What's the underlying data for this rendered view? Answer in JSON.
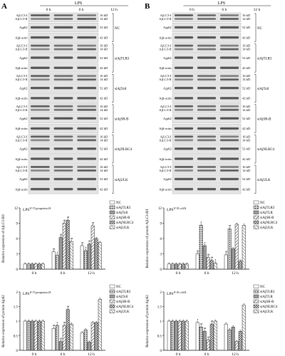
{
  "panels": [
    {
      "letter": "A",
      "lps": "LPS",
      "lps_sup": "$^{T.pyrogenicus}$",
      "times": [
        "0 h",
        "6 h",
        "12 h"
      ],
      "blot_rows": [
        {
          "labels": [
            "AjLC3-I",
            "AjLC3-II"
          ],
          "kd": [
            "16 kD",
            "14 kD"
          ]
        },
        {
          "labels": [
            "Ajp62"
          ],
          "kd": [
            "52 kD"
          ]
        },
        {
          "labels": [
            "Ajβ-actin"
          ],
          "kd": [
            "42 kD"
          ]
        },
        {
          "labels": [
            "AjLC3-I",
            "AjLC3-II"
          ],
          "kd": [
            "16 kD",
            "14 kD"
          ]
        },
        {
          "labels": [
            "Ajp62"
          ],
          "kd": [
            "52 kD"
          ]
        },
        {
          "labels": [
            "Ajβ-actin"
          ],
          "kd": [
            "42 kD"
          ]
        },
        {
          "labels": [
            "AjLC3-I",
            "AjLC3-II"
          ],
          "kd": [
            "16 kD",
            "14 kD"
          ]
        },
        {
          "labels": [
            "Ajp62"
          ],
          "kd": [
            "52 kD"
          ]
        },
        {
          "labels": [
            "Ajβ-actin"
          ],
          "kd": [
            "42 kD"
          ]
        },
        {
          "labels": [
            "AjLC3-I",
            "AjLC3-II"
          ],
          "kd": [
            "16 kD",
            "14 kD"
          ]
        },
        {
          "labels": [
            "Ajp62"
          ],
          "kd": [
            "52 kD"
          ]
        },
        {
          "labels": [
            "Ajβ-actin"
          ],
          "kd": [
            "42 kD"
          ]
        },
        {
          "labels": [
            "AjLC3-I",
            "AjLC3-II"
          ],
          "kd": [
            "16 kD",
            "14 kD"
          ]
        },
        {
          "labels": [
            "Ajp62"
          ],
          "kd": [
            "52 kD"
          ]
        },
        {
          "labels": [
            "Ajβ-actin"
          ],
          "kd": [
            "42 kD"
          ]
        },
        {
          "labels": [
            "AjLC3-I",
            "AjLC3-II"
          ],
          "kd": [
            "16 kD",
            "14 kD"
          ]
        },
        {
          "labels": [
            "Ajp62"
          ],
          "kd": [
            "52 kD"
          ]
        },
        {
          "labels": [
            "Ajβ-actin"
          ],
          "kd": [
            "42 kD"
          ]
        }
      ],
      "groups": [
        "NC",
        "siAjTLR3",
        "siAjToll",
        "siAjSR-B",
        "siAjNLRC4",
        "siAjULK"
      ]
    },
    {
      "letter": "B",
      "lps": "LPS",
      "lps_sup": "$^{E.coli}$",
      "times": [
        "0 h",
        "6 h",
        "12 h"
      ],
      "blot_rows": [
        {
          "labels": [
            "AjLC3-I",
            "AjLC3-II"
          ],
          "kd": [
            "16 kD",
            "14 kD"
          ]
        },
        {
          "labels": [
            "Ajp62"
          ],
          "kd": [
            "52 kD"
          ]
        },
        {
          "labels": [
            "Ajβ-actin"
          ],
          "kd": [
            "42 kD"
          ]
        },
        {
          "labels": [
            "AjLC3-I",
            "AjLC3-II"
          ],
          "kd": [
            "16 kD",
            "14 kD"
          ]
        },
        {
          "labels": [
            "Ajp62"
          ],
          "kd": [
            "52 kD"
          ]
        },
        {
          "labels": [
            "Ajβ-actin"
          ],
          "kd": [
            "42 kD"
          ]
        },
        {
          "labels": [
            "AjLC3-I",
            "AjLC3-II"
          ],
          "kd": [
            "16 kD",
            "14 kD"
          ]
        },
        {
          "labels": [
            "Ajp62"
          ],
          "kd": [
            "52 kD"
          ]
        },
        {
          "labels": [
            "Ajβ-actin"
          ],
          "kd": [
            "42 kD"
          ]
        },
        {
          "labels": [
            "AjLC3-I",
            "AjLC3-II"
          ],
          "kd": [
            "16 kD",
            "14 kD"
          ]
        },
        {
          "labels": [
            "Ajp62"
          ],
          "kd": [
            "52 kD"
          ]
        },
        {
          "labels": [
            "Ajβ-actin"
          ],
          "kd": [
            "42 kD"
          ]
        },
        {
          "labels": [
            "AjLC3-I",
            "AjLC3-II"
          ],
          "kd": [
            "16 kD",
            "14 kD"
          ]
        },
        {
          "labels": [
            "Ajp62"
          ],
          "kd": [
            "52 kD"
          ]
        },
        {
          "labels": [
            "Ajβ-actin"
          ],
          "kd": [
            "42 kD"
          ]
        },
        {
          "labels": [
            "AjLC3-I",
            "AjLC3-II"
          ],
          "kd": [
            "16 kD",
            "14 kD"
          ]
        },
        {
          "labels": [
            "Ajp62"
          ],
          "kd": [
            "52 kD"
          ]
        },
        {
          "labels": [
            "Ajβ-actin"
          ],
          "kd": [
            "42 kD"
          ]
        }
      ],
      "groups": [
        "NC",
        "siAjTLR3",
        "siAjToll",
        "siAjSR-B",
        "siAjNLRC4",
        "siAjULK"
      ]
    }
  ],
  "chart_data": [
    {
      "type": "bar",
      "panel": "A",
      "ylabel": "Relative expression of AjLC3-II/I",
      "categories": [
        "0 h",
        "6 h",
        "12 h"
      ],
      "ylim": [
        0,
        12
      ],
      "yticks": [
        0,
        3,
        6,
        9,
        12
      ],
      "series": [
        {
          "name": "NC",
          "values": [
            1.0,
            3.4,
            4.6
          ]
        },
        {
          "name": "siAjTLR3",
          "values": [
            1.0,
            2.7,
            3.6
          ]
        },
        {
          "name": "siAjToll",
          "values": [
            1.0,
            6.2,
            4.9
          ]
        },
        {
          "name": "siAjSR-B",
          "values": [
            1.0,
            9.0,
            8.5
          ]
        },
        {
          "name": "siAjNLRC4",
          "values": [
            1.0,
            9.6,
            6.0
          ]
        },
        {
          "name": "siAjULK",
          "values": [
            1.0,
            5.4,
            5.2
          ]
        }
      ],
      "annotations": [
        "aa",
        "a",
        "aa",
        "aa",
        "aa",
        "aa",
        "aa",
        "a",
        "aa",
        "aa"
      ]
    },
    {
      "type": "bar",
      "panel": "B",
      "ylabel": "Relative expression of protein AjLC3-II/I",
      "categories": [
        "0 h",
        "6 h",
        "12 h"
      ],
      "ylim": [
        0,
        12
      ],
      "yticks": [
        0,
        3,
        6,
        9,
        12
      ],
      "series": [
        {
          "name": "NC",
          "values": [
            1.0,
            3.0,
            2.8
          ]
        },
        {
          "name": "siAjTLR3",
          "values": [
            1.0,
            8.6,
            7.9
          ]
        },
        {
          "name": "siAjTLR",
          "values": [
            1.0,
            4.6,
            4.0
          ]
        },
        {
          "name": "siAjSR-B",
          "values": [
            1.0,
            2.3,
            8.8
          ]
        },
        {
          "name": "siAjNLRC4",
          "values": [
            1.0,
            1.7,
            1.6
          ]
        },
        {
          "name": "siAjULK",
          "values": [
            1.0,
            1.2,
            8.6
          ]
        }
      ],
      "annotations": [
        "aa",
        "a",
        "a",
        "aa",
        "aa",
        "a",
        "aa",
        "aa"
      ]
    },
    {
      "type": "bar",
      "panel": "A",
      "ylabel": "Relative expression of protein Ajp62",
      "categories": [
        "0 h",
        "6 h",
        "12 h"
      ],
      "ylim": [
        0,
        2.0
      ],
      "yticks": [
        0,
        0.5,
        1.0,
        1.5,
        2.0
      ],
      "series": [
        {
          "name": "NC",
          "values": [
            1.0,
            0.75,
            0.6
          ]
        },
        {
          "name": "siAjTLR3",
          "values": [
            1.0,
            0.85,
            0.7
          ]
        },
        {
          "name": "siAjToll",
          "values": [
            1.0,
            0.3,
            0.28
          ]
        },
        {
          "name": "siAjSR-B",
          "values": [
            1.0,
            0.85,
            0.95
          ]
        },
        {
          "name": "siAjNLRC4",
          "values": [
            1.0,
            1.4,
            0.95
          ]
        },
        {
          "name": "siAjULK",
          "values": [
            1.0,
            0.9,
            1.75
          ]
        }
      ],
      "annotations": [
        "aa",
        "a",
        "aa",
        "aa",
        "aa"
      ]
    },
    {
      "type": "bar",
      "panel": "B",
      "ylabel": "Relative expression of protein Ajp62",
      "categories": [
        "0 h",
        "6 h",
        "12 h"
      ],
      "ylim": [
        0,
        2.0
      ],
      "yticks": [
        0,
        0.5,
        1.0,
        1.5,
        2.0
      ],
      "series": [
        {
          "name": "NC",
          "values": [
            1.0,
            0.95,
            0.9
          ]
        },
        {
          "name": "siAjTLR3",
          "values": [
            1.0,
            0.8,
            0.7
          ]
        },
        {
          "name": "siAjTLR",
          "values": [
            1.0,
            0.65,
            0.8
          ]
        },
        {
          "name": "siAjSR-B",
          "values": [
            1.0,
            0.35,
            0.3
          ]
        },
        {
          "name": "siAjNLRC4",
          "values": [
            1.0,
            0.9,
            0.65
          ]
        },
        {
          "name": "siAjULK",
          "values": [
            1.0,
            1.0,
            1.55
          ]
        }
      ],
      "annotations": [
        "a",
        "aa",
        "aa",
        "aa",
        "aa"
      ]
    }
  ],
  "colors": {
    "bars": [
      "#ffffff",
      "#bdbdbd",
      "#9a9a9a",
      "#ffffff",
      "#ededed",
      "#ffffff"
    ],
    "patterns": [
      "none",
      "dots",
      "none",
      "diag",
      "cross",
      "hatch"
    ]
  }
}
